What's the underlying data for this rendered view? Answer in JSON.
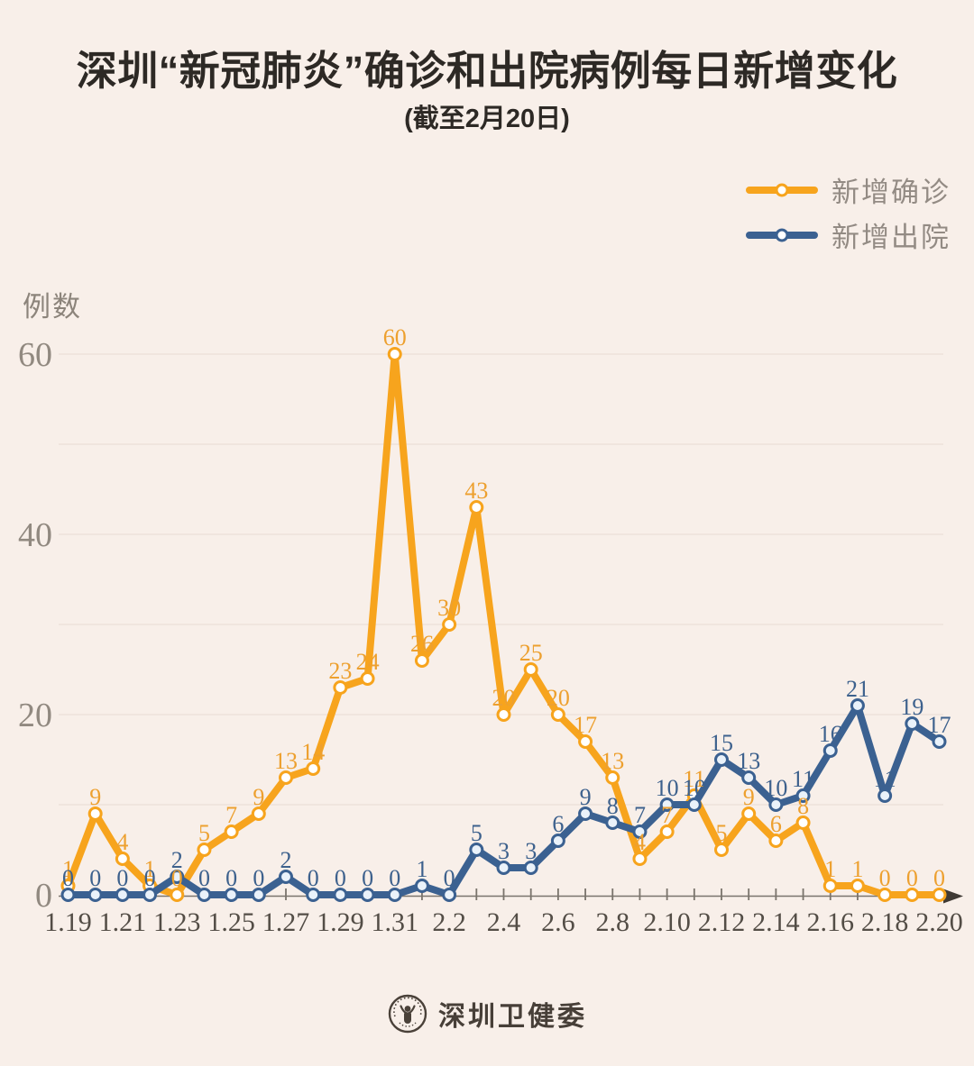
{
  "title": "深圳“新冠肺炎”确诊和出院病例每日新增变化",
  "subtitle": "(截至2月20日)",
  "y_axis_title": "例数",
  "legend": {
    "items": [
      {
        "label": "新增确诊",
        "color": "#F7A41D",
        "label_color": "#EDA02F"
      },
      {
        "label": "新增出院",
        "color": "#3B6191",
        "label_color": "#3D618D"
      }
    ]
  },
  "footer": {
    "brand": "深圳卫健委",
    "logo_icon": "round-seal-person-icon"
  },
  "colors": {
    "background": "#F8EFE9",
    "gridline": "#EDE2DA",
    "axis": "#7A746C",
    "arrow": "#3F3A35",
    "y_tick_label": "#918980",
    "x_tick_label": "#534D46",
    "title_text": "#2D2925",
    "legend_text": "#938B84"
  },
  "chart_data": {
    "type": "line",
    "title": "深圳“新冠肺炎”确诊和出院病例每日新增变化",
    "subtitle": "(截至2月20日)",
    "ylabel": "例数",
    "ylim": [
      0,
      60
    ],
    "yticks": [
      0,
      20,
      40,
      60
    ],
    "grid_step": 10,
    "grid": true,
    "legend_position": "top-right",
    "data_labels": true,
    "x_label_every": 2,
    "x": [
      "1.19",
      "1.20",
      "1.21",
      "1.22",
      "1.23",
      "1.24",
      "1.25",
      "1.26",
      "1.27",
      "1.28",
      "1.29",
      "1.30",
      "1.31",
      "2.1",
      "2.2",
      "2.3",
      "2.4",
      "2.5",
      "2.6",
      "2.7",
      "2.8",
      "2.9",
      "2.10",
      "2.11",
      "2.12",
      "2.13",
      "2.14",
      "2.15",
      "2.16",
      "2.17",
      "2.18",
      "2.19",
      "2.20"
    ],
    "series": [
      {
        "name": "新增确诊",
        "color": "#F7A41D",
        "label_color": "#EDA02F",
        "marker_fill": "#FFFFFF",
        "values": [
          1,
          9,
          4,
          1,
          0,
          5,
          7,
          9,
          13,
          14,
          23,
          24,
          60,
          26,
          30,
          43,
          20,
          25,
          20,
          17,
          13,
          4,
          7,
          11,
          5,
          9,
          6,
          8,
          1,
          1,
          0,
          0,
          0
        ]
      },
      {
        "name": "新增出院",
        "color": "#3B6191",
        "label_color": "#3D618D",
        "marker_fill": "#EAF2FA",
        "values": [
          0,
          0,
          0,
          0,
          2,
          0,
          0,
          0,
          2,
          0,
          0,
          0,
          0,
          1,
          0,
          5,
          3,
          3,
          6,
          9,
          8,
          7,
          10,
          10,
          15,
          13,
          10,
          11,
          16,
          21,
          11,
          19,
          17
        ]
      }
    ]
  }
}
